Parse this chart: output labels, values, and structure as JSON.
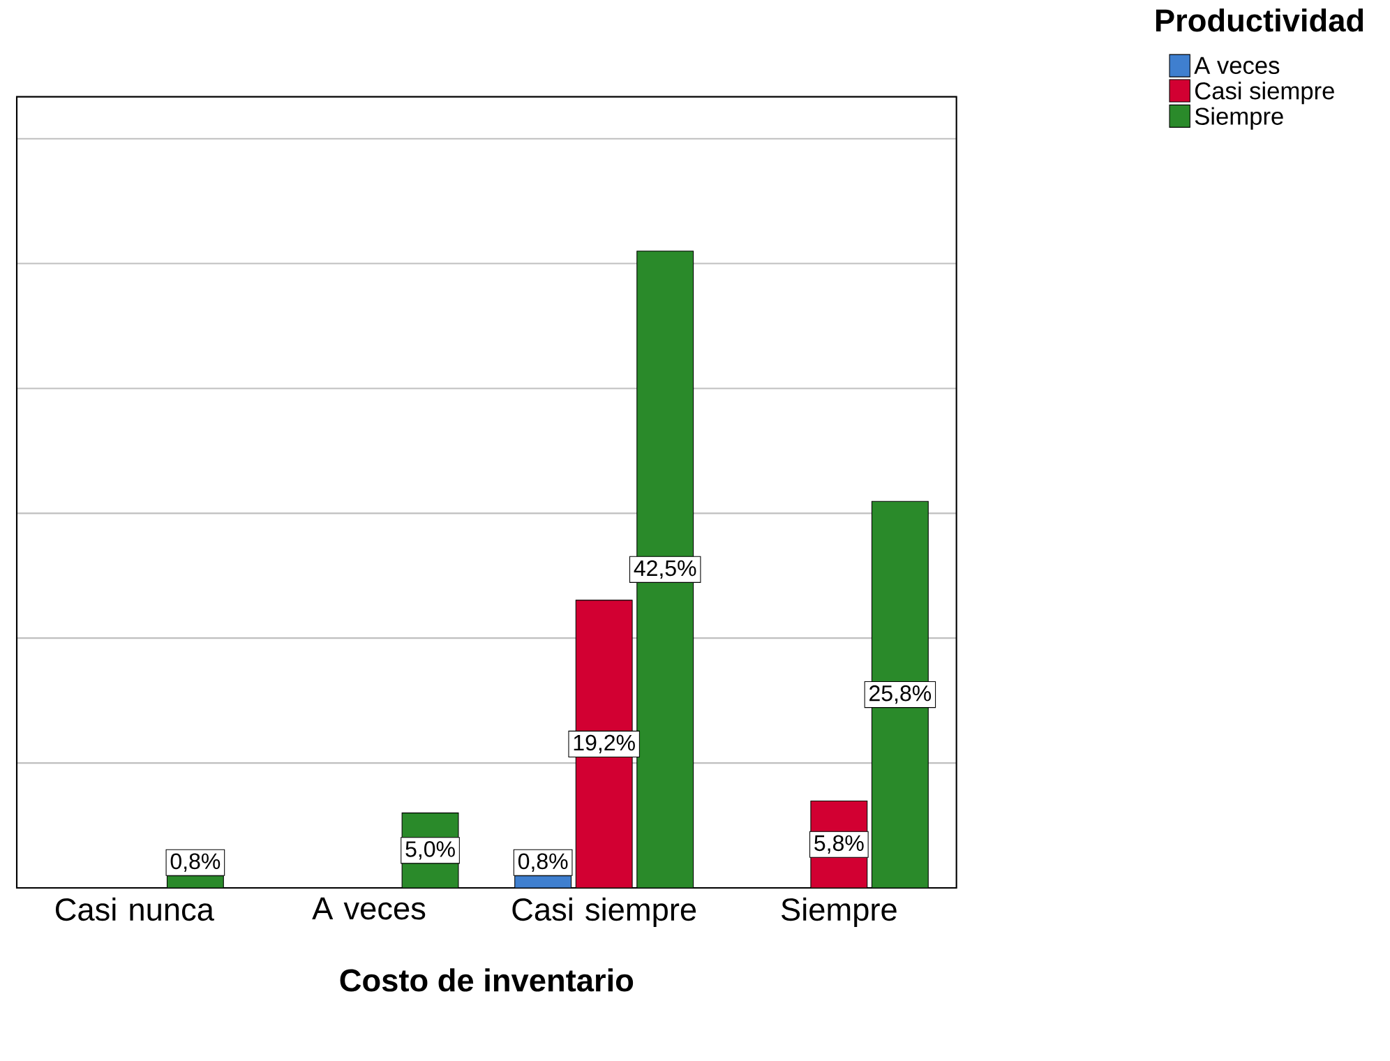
{
  "chart_data": {
    "type": "bar",
    "xlabel": "Costo de inventario",
    "legend_title": "Productividad",
    "categories": [
      "Casi nunca",
      "A veces",
      "Casi siempre",
      "Siempre"
    ],
    "series": [
      {
        "name": "A veces",
        "color": "#3f7fcf",
        "values": [
          null,
          null,
          0.8,
          null
        ],
        "value_labels": [
          null,
          null,
          "0,8%",
          null
        ]
      },
      {
        "name": "Casi siempre",
        "color": "#d20032",
        "values": [
          null,
          null,
          19.2,
          5.8
        ],
        "value_labels": [
          null,
          null,
          "19,2%",
          "5,8%"
        ]
      },
      {
        "name": "Siempre",
        "color": "#2a8a2a",
        "values": [
          0.8,
          5.0,
          42.5,
          25.8
        ],
        "value_labels": [
          "0,8%",
          "5,0%",
          "42,5%",
          "25,8%"
        ]
      }
    ],
    "ylim": [
      0,
      52.8
    ],
    "yticks": [
      {
        "value": 8.33,
        "label": null
      },
      {
        "value": 16.67,
        "label": null
      },
      {
        "value": 25,
        "label": null
      },
      {
        "value": 33.33,
        "label": null
      },
      {
        "value": 41.67,
        "label": null
      },
      {
        "value": 50,
        "label": null
      }
    ],
    "tick_labels": "x",
    "grid": "y",
    "legend": "top right"
  }
}
